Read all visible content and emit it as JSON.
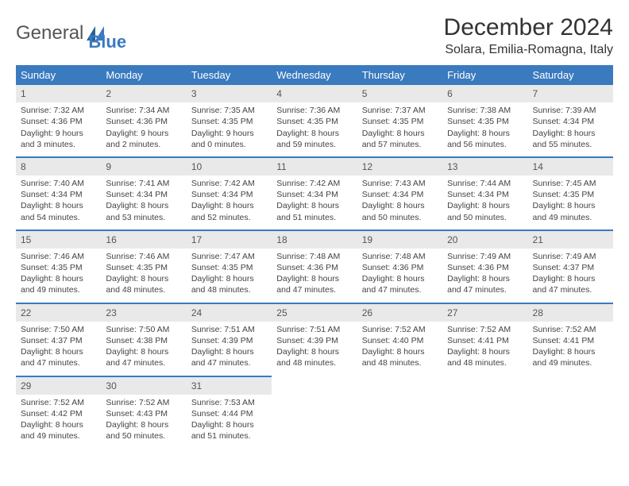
{
  "logo": {
    "text1": "General",
    "text2": "Blue"
  },
  "title": "December 2024",
  "location": "Solara, Emilia-Romagna, Italy",
  "colors": {
    "header_bg": "#3a7abf",
    "header_text": "#ffffff",
    "daynum_bg": "#e9e9e9",
    "row_divider": "#3a7abf",
    "body_text": "#444444"
  },
  "weekdays": [
    "Sunday",
    "Monday",
    "Tuesday",
    "Wednesday",
    "Thursday",
    "Friday",
    "Saturday"
  ],
  "days": [
    {
      "n": 1,
      "sunrise": "7:32 AM",
      "sunset": "4:36 PM",
      "daylight": "9 hours and 3 minutes."
    },
    {
      "n": 2,
      "sunrise": "7:34 AM",
      "sunset": "4:36 PM",
      "daylight": "9 hours and 2 minutes."
    },
    {
      "n": 3,
      "sunrise": "7:35 AM",
      "sunset": "4:35 PM",
      "daylight": "9 hours and 0 minutes."
    },
    {
      "n": 4,
      "sunrise": "7:36 AM",
      "sunset": "4:35 PM",
      "daylight": "8 hours and 59 minutes."
    },
    {
      "n": 5,
      "sunrise": "7:37 AM",
      "sunset": "4:35 PM",
      "daylight": "8 hours and 57 minutes."
    },
    {
      "n": 6,
      "sunrise": "7:38 AM",
      "sunset": "4:35 PM",
      "daylight": "8 hours and 56 minutes."
    },
    {
      "n": 7,
      "sunrise": "7:39 AM",
      "sunset": "4:34 PM",
      "daylight": "8 hours and 55 minutes."
    },
    {
      "n": 8,
      "sunrise": "7:40 AM",
      "sunset": "4:34 PM",
      "daylight": "8 hours and 54 minutes."
    },
    {
      "n": 9,
      "sunrise": "7:41 AM",
      "sunset": "4:34 PM",
      "daylight": "8 hours and 53 minutes."
    },
    {
      "n": 10,
      "sunrise": "7:42 AM",
      "sunset": "4:34 PM",
      "daylight": "8 hours and 52 minutes."
    },
    {
      "n": 11,
      "sunrise": "7:42 AM",
      "sunset": "4:34 PM",
      "daylight": "8 hours and 51 minutes."
    },
    {
      "n": 12,
      "sunrise": "7:43 AM",
      "sunset": "4:34 PM",
      "daylight": "8 hours and 50 minutes."
    },
    {
      "n": 13,
      "sunrise": "7:44 AM",
      "sunset": "4:34 PM",
      "daylight": "8 hours and 50 minutes."
    },
    {
      "n": 14,
      "sunrise": "7:45 AM",
      "sunset": "4:35 PM",
      "daylight": "8 hours and 49 minutes."
    },
    {
      "n": 15,
      "sunrise": "7:46 AM",
      "sunset": "4:35 PM",
      "daylight": "8 hours and 49 minutes."
    },
    {
      "n": 16,
      "sunrise": "7:46 AM",
      "sunset": "4:35 PM",
      "daylight": "8 hours and 48 minutes."
    },
    {
      "n": 17,
      "sunrise": "7:47 AM",
      "sunset": "4:35 PM",
      "daylight": "8 hours and 48 minutes."
    },
    {
      "n": 18,
      "sunrise": "7:48 AM",
      "sunset": "4:36 PM",
      "daylight": "8 hours and 47 minutes."
    },
    {
      "n": 19,
      "sunrise": "7:48 AM",
      "sunset": "4:36 PM",
      "daylight": "8 hours and 47 minutes."
    },
    {
      "n": 20,
      "sunrise": "7:49 AM",
      "sunset": "4:36 PM",
      "daylight": "8 hours and 47 minutes."
    },
    {
      "n": 21,
      "sunrise": "7:49 AM",
      "sunset": "4:37 PM",
      "daylight": "8 hours and 47 minutes."
    },
    {
      "n": 22,
      "sunrise": "7:50 AM",
      "sunset": "4:37 PM",
      "daylight": "8 hours and 47 minutes."
    },
    {
      "n": 23,
      "sunrise": "7:50 AM",
      "sunset": "4:38 PM",
      "daylight": "8 hours and 47 minutes."
    },
    {
      "n": 24,
      "sunrise": "7:51 AM",
      "sunset": "4:39 PM",
      "daylight": "8 hours and 47 minutes."
    },
    {
      "n": 25,
      "sunrise": "7:51 AM",
      "sunset": "4:39 PM",
      "daylight": "8 hours and 48 minutes."
    },
    {
      "n": 26,
      "sunrise": "7:52 AM",
      "sunset": "4:40 PM",
      "daylight": "8 hours and 48 minutes."
    },
    {
      "n": 27,
      "sunrise": "7:52 AM",
      "sunset": "4:41 PM",
      "daylight": "8 hours and 48 minutes."
    },
    {
      "n": 28,
      "sunrise": "7:52 AM",
      "sunset": "4:41 PM",
      "daylight": "8 hours and 49 minutes."
    },
    {
      "n": 29,
      "sunrise": "7:52 AM",
      "sunset": "4:42 PM",
      "daylight": "8 hours and 49 minutes."
    },
    {
      "n": 30,
      "sunrise": "7:52 AM",
      "sunset": "4:43 PM",
      "daylight": "8 hours and 50 minutes."
    },
    {
      "n": 31,
      "sunrise": "7:53 AM",
      "sunset": "4:44 PM",
      "daylight": "8 hours and 51 minutes."
    }
  ],
  "labels": {
    "sunrise": "Sunrise: ",
    "sunset": "Sunset: ",
    "daylight": "Daylight: "
  }
}
